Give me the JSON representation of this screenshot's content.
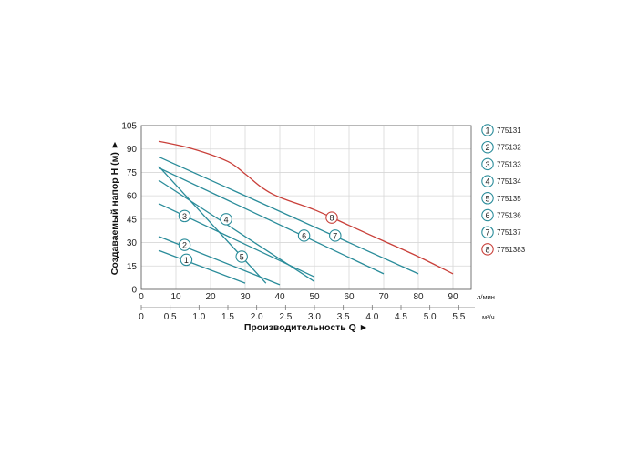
{
  "chart_data": {
    "type": "line",
    "ylabel": "Создаваемый напор H (м) ►",
    "xlabel": "Производительность Q ►",
    "ylim": [
      0,
      105
    ],
    "yticks": [
      0,
      15,
      30,
      45,
      60,
      75,
      90,
      105
    ],
    "xlim_lpm": [
      0,
      100
    ],
    "xticks_lpm": [
      0,
      10,
      20,
      30,
      40,
      50,
      60,
      70,
      80,
      90
    ],
    "x_unit_lpm": "л/мин",
    "xticks_m3h": [
      "0",
      "0.5",
      "1.0",
      "1.5",
      "2.0",
      "2.5",
      "3.0",
      "3.5",
      "4.0",
      "4.5",
      "5.0",
      "5.5"
    ],
    "x_unit_m3h": "м³/ч",
    "grid": true,
    "legend_position": "right",
    "colors": {
      "teal": "#2a8c9a",
      "red": "#c9403a"
    },
    "series": [
      {
        "name": "775131",
        "badge": "1",
        "color": "#2a8c9a",
        "x": [
          5,
          30
        ],
        "y": [
          25,
          4
        ],
        "label_at": [
          13,
          19
        ]
      },
      {
        "name": "775132",
        "badge": "2",
        "color": "#2a8c9a",
        "x": [
          5,
          40
        ],
        "y": [
          34,
          3
        ],
        "label_at": [
          12.5,
          28.5
        ]
      },
      {
        "name": "775133",
        "badge": "3",
        "color": "#2a8c9a",
        "x": [
          5,
          50
        ],
        "y": [
          55,
          8
        ],
        "label_at": [
          12.5,
          47
        ]
      },
      {
        "name": "775134",
        "badge": "4",
        "color": "#2a8c9a",
        "x": [
          5,
          50
        ],
        "y": [
          70,
          5
        ],
        "label_at": [
          24.5,
          45
        ]
      },
      {
        "name": "775135",
        "badge": "5",
        "color": "#2a8c9a",
        "x": [
          5,
          36
        ],
        "y": [
          79,
          4
        ],
        "label_at": [
          29,
          21
        ]
      },
      {
        "name": "775136",
        "badge": "6",
        "color": "#2a8c9a",
        "x": [
          5,
          70
        ],
        "y": [
          78,
          10
        ],
        "label_at": [
          47,
          34.5
        ]
      },
      {
        "name": "775137",
        "badge": "7",
        "color": "#2a8c9a",
        "x": [
          5,
          80
        ],
        "y": [
          85,
          10
        ],
        "label_at": [
          56,
          34.5
        ]
      },
      {
        "name": "7751383",
        "badge": "8",
        "color": "#c9403a",
        "x": [
          5,
          15,
          25,
          30,
          35,
          40,
          50,
          60,
          70,
          80,
          90
        ],
        "y": [
          95,
          90,
          82,
          74,
          65,
          59,
          51,
          41,
          31,
          21,
          10
        ],
        "label_at": [
          55,
          46
        ]
      }
    ]
  }
}
